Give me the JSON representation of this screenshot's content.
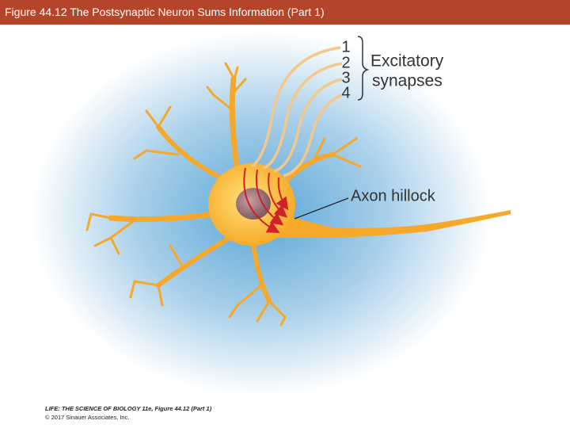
{
  "header": {
    "title": "Figure 44.12  The Postsynaptic Neuron Sums Information (Part 1)"
  },
  "diagram": {
    "synapse_numbers": [
      "1",
      "2",
      "3",
      "4"
    ],
    "synapse_label": [
      "Excitatory",
      "synapses"
    ],
    "axon_label": "Axon hillock"
  },
  "footer": {
    "source": "LIFE: THE SCIENCE OF BIOLOGY 11e, Figure 44.12 (Part 1)",
    "copyright": "© 2017 Sinauer Associates, Inc."
  }
}
